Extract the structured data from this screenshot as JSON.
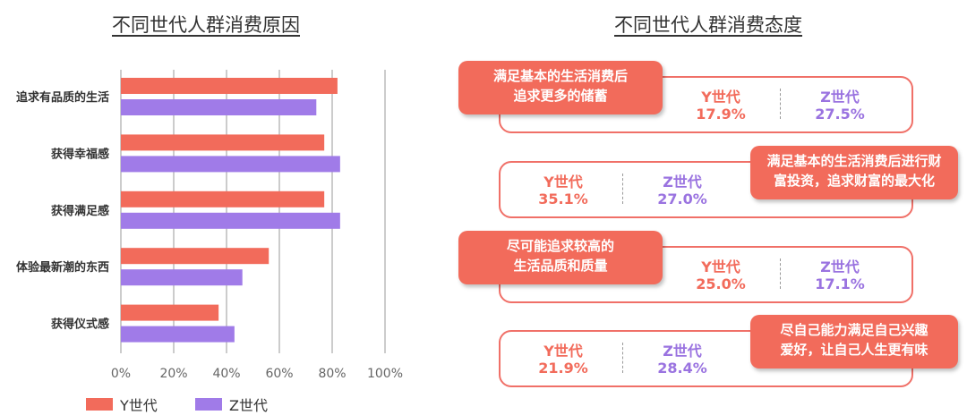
{
  "left_title": "不同世代人群消费原因",
  "right_title": "不同世代人群消费态度",
  "colors": {
    "y": "#f26b5b",
    "z": "#a07be8"
  },
  "chart_data": {
    "type": "bar",
    "orientation": "horizontal",
    "categories": [
      "追求有品质的生活",
      "获得幸福感",
      "获得满足感",
      "体验最新潮的东西",
      "获得仪式感"
    ],
    "series": [
      {
        "name": "Y世代",
        "values": [
          82,
          77,
          77,
          56,
          37
        ]
      },
      {
        "name": "Z世代",
        "values": [
          74,
          83,
          83,
          46,
          43
        ]
      }
    ],
    "xticks": [
      "0%",
      "20%",
      "40%",
      "60%",
      "80%",
      "100%"
    ],
    "xlim": [
      0,
      100
    ],
    "grid": true,
    "legend": "bottom-left"
  },
  "attitudes": [
    {
      "tag": "满足基本的生活消费后\n追求更多的储蓄",
      "y_label": "Y世代",
      "y_value": "17.9%",
      "z_label": "Z世代",
      "z_value": "27.5%"
    },
    {
      "tag": "满足基本的生活消费后进行财\n富投资，追求财富的最大化",
      "y_label": "Y世代",
      "y_value": "35.1%",
      "z_label": "Z世代",
      "z_value": "27.0%"
    },
    {
      "tag": "尽可能追求较高的\n生活品质和质量",
      "y_label": "Y世代",
      "y_value": "25.0%",
      "z_label": "Z世代",
      "z_value": "17.1%"
    },
    {
      "tag": "尽自己能力满足自己兴趣\n爱好，让自己人生更有味",
      "y_label": "Y世代",
      "y_value": "21.9%",
      "z_label": "Z世代",
      "z_value": "28.4%"
    }
  ]
}
